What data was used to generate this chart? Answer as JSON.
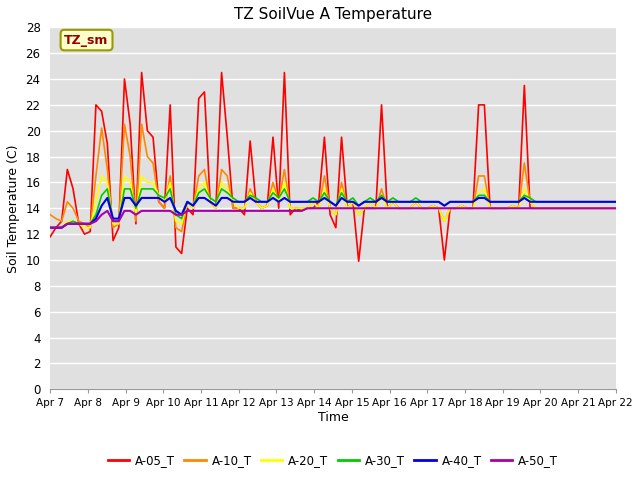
{
  "title": "TZ SoilVue A Temperature",
  "xlabel": "Time",
  "ylabel": "Soil Temperature (C)",
  "ylim": [
    0,
    28
  ],
  "yticks": [
    0,
    2,
    4,
    6,
    8,
    10,
    12,
    14,
    16,
    18,
    20,
    22,
    24,
    26,
    28
  ],
  "bg_color": "#ffffff",
  "plot_bg_color": "#e0e0e0",
  "annotation_text": "TZ_sm",
  "annotation_color": "#990000",
  "annotation_bg": "#ffffcc",
  "annotation_border": "#999900",
  "series_order": [
    "A-05_T",
    "A-10_T",
    "A-20_T",
    "A-30_T",
    "A-40_T",
    "A-50_T"
  ],
  "series": {
    "A-05_T": {
      "color": "#ff0000",
      "linewidth": 1.2
    },
    "A-10_T": {
      "color": "#ff8800",
      "linewidth": 1.2
    },
    "A-20_T": {
      "color": "#ffff00",
      "linewidth": 1.2
    },
    "A-30_T": {
      "color": "#00cc00",
      "linewidth": 1.2
    },
    "A-40_T": {
      "color": "#0000ee",
      "linewidth": 1.5
    },
    "A-50_T": {
      "color": "#aa00aa",
      "linewidth": 1.5
    }
  },
  "A05": [
    11.8,
    12.5,
    13.0,
    17.0,
    15.5,
    12.8,
    12.0,
    12.2,
    22.0,
    21.5,
    19.0,
    11.5,
    12.5,
    24.0,
    20.5,
    12.8,
    24.5,
    20.0,
    19.5,
    14.5,
    14.0,
    22.0,
    11.0,
    10.5,
    14.0,
    13.5,
    22.5,
    23.0,
    14.5,
    14.0,
    24.5,
    19.5,
    14.0,
    14.0,
    13.5,
    19.2,
    14.5,
    14.0,
    14.2,
    19.5,
    14.0,
    24.5,
    13.5,
    14.0,
    13.8,
    14.0,
    14.0,
    14.5,
    19.5,
    13.5,
    12.5,
    19.5,
    14.0,
    14.5,
    9.9,
    14.0,
    14.0,
    14.0,
    22.0,
    14.0,
    14.5,
    14.0,
    14.0,
    14.0,
    14.5,
    14.0,
    14.0,
    14.2,
    14.0,
    10.0,
    14.0,
    14.0,
    14.2,
    14.0,
    14.0,
    22.0,
    22.0,
    14.0,
    14.0,
    14.0,
    14.0,
    14.2,
    14.0,
    23.5,
    14.0,
    14.0,
    14.0,
    14.0,
    14.0,
    14.0,
    14.0,
    14.0,
    14.0,
    14.0,
    14.0,
    14.0,
    14.0,
    14.0,
    14.0,
    14.0
  ],
  "A10": [
    13.5,
    13.2,
    13.0,
    14.5,
    14.0,
    13.0,
    12.8,
    12.5,
    16.5,
    20.2,
    17.0,
    12.5,
    12.8,
    20.5,
    18.0,
    13.0,
    20.5,
    18.0,
    17.5,
    14.5,
    14.0,
    16.5,
    12.5,
    12.2,
    14.5,
    14.0,
    16.5,
    17.0,
    14.5,
    14.0,
    17.0,
    16.5,
    14.0,
    14.0,
    14.0,
    15.5,
    14.5,
    14.0,
    14.2,
    16.0,
    14.5,
    17.0,
    14.0,
    14.0,
    14.0,
    14.0,
    14.5,
    14.0,
    16.5,
    14.0,
    13.5,
    16.0,
    14.0,
    14.5,
    13.5,
    14.0,
    14.5,
    14.0,
    15.5,
    14.0,
    14.5,
    14.0,
    14.0,
    14.0,
    14.5,
    14.0,
    14.0,
    14.2,
    14.0,
    13.0,
    14.0,
    14.0,
    14.2,
    14.0,
    14.0,
    16.5,
    16.5,
    14.0,
    14.0,
    14.0,
    14.0,
    14.2,
    14.0,
    17.5,
    14.5,
    14.0,
    14.0,
    14.0,
    14.0,
    14.0,
    14.0,
    14.0,
    14.0,
    14.0,
    14.0,
    14.0,
    14.0,
    14.0,
    14.0,
    14.0
  ],
  "A20": [
    12.5,
    12.5,
    12.5,
    13.0,
    13.0,
    12.8,
    12.5,
    12.5,
    14.5,
    16.5,
    16.0,
    12.8,
    12.8,
    16.5,
    16.0,
    13.5,
    16.5,
    16.0,
    16.0,
    15.0,
    14.5,
    16.0,
    13.0,
    12.8,
    14.5,
    14.0,
    15.5,
    16.0,
    14.5,
    14.0,
    16.0,
    15.5,
    14.5,
    14.0,
    14.0,
    15.2,
    14.5,
    14.0,
    14.2,
    15.5,
    14.5,
    16.0,
    14.0,
    14.0,
    14.0,
    14.0,
    14.5,
    14.0,
    15.5,
    14.0,
    13.5,
    15.5,
    14.0,
    14.5,
    13.5,
    14.0,
    14.5,
    14.0,
    15.0,
    14.0,
    14.5,
    14.0,
    14.0,
    14.0,
    14.5,
    14.0,
    14.0,
    14.2,
    14.0,
    13.0,
    14.0,
    14.0,
    14.2,
    14.0,
    14.0,
    15.2,
    15.5,
    14.0,
    14.0,
    14.0,
    14.0,
    14.2,
    14.0,
    15.5,
    14.5,
    14.0,
    14.0,
    14.0,
    14.0,
    14.0,
    14.0,
    14.0,
    14.0,
    14.0,
    14.0,
    14.0,
    14.0,
    14.0,
    14.0,
    14.0
  ],
  "A30": [
    12.5,
    12.5,
    12.5,
    12.8,
    13.0,
    12.8,
    12.8,
    12.8,
    13.5,
    15.0,
    15.5,
    13.0,
    13.0,
    15.5,
    15.5,
    14.0,
    15.5,
    15.5,
    15.5,
    15.0,
    14.8,
    15.5,
    13.5,
    13.2,
    14.5,
    14.2,
    15.2,
    15.5,
    14.8,
    14.5,
    15.5,
    15.2,
    14.8,
    14.5,
    14.5,
    15.0,
    14.8,
    14.5,
    14.5,
    15.2,
    14.8,
    15.5,
    14.5,
    14.5,
    14.5,
    14.5,
    14.8,
    14.5,
    15.2,
    14.5,
    14.2,
    15.2,
    14.5,
    14.8,
    14.2,
    14.5,
    14.8,
    14.5,
    15.0,
    14.5,
    14.8,
    14.5,
    14.5,
    14.5,
    14.8,
    14.5,
    14.5,
    14.5,
    14.5,
    14.2,
    14.5,
    14.5,
    14.5,
    14.5,
    14.5,
    15.0,
    15.0,
    14.5,
    14.5,
    14.5,
    14.5,
    14.5,
    14.5,
    15.0,
    14.8,
    14.5,
    14.5,
    14.5,
    14.5,
    14.5,
    14.5,
    14.5,
    14.5,
    14.5,
    14.5,
    14.5,
    14.5,
    14.5,
    14.5,
    14.5
  ],
  "A40": [
    12.5,
    12.5,
    12.5,
    12.8,
    12.8,
    12.8,
    12.8,
    12.8,
    13.2,
    14.2,
    14.8,
    13.2,
    13.2,
    14.8,
    14.8,
    14.2,
    14.8,
    14.8,
    14.8,
    14.8,
    14.5,
    14.8,
    13.8,
    13.5,
    14.5,
    14.2,
    14.8,
    14.8,
    14.5,
    14.2,
    14.8,
    14.8,
    14.5,
    14.5,
    14.5,
    14.8,
    14.5,
    14.5,
    14.5,
    14.8,
    14.5,
    14.8,
    14.5,
    14.5,
    14.5,
    14.5,
    14.5,
    14.5,
    14.8,
    14.5,
    14.2,
    14.8,
    14.5,
    14.5,
    14.2,
    14.5,
    14.5,
    14.5,
    14.8,
    14.5,
    14.5,
    14.5,
    14.5,
    14.5,
    14.5,
    14.5,
    14.5,
    14.5,
    14.5,
    14.2,
    14.5,
    14.5,
    14.5,
    14.5,
    14.5,
    14.8,
    14.8,
    14.5,
    14.5,
    14.5,
    14.5,
    14.5,
    14.5,
    14.8,
    14.5,
    14.5,
    14.5,
    14.5,
    14.5,
    14.5,
    14.5,
    14.5,
    14.5,
    14.5,
    14.5,
    14.5,
    14.5,
    14.5,
    14.5,
    14.5
  ],
  "A50": [
    12.5,
    12.5,
    12.5,
    12.8,
    12.8,
    12.8,
    12.8,
    12.8,
    13.0,
    13.5,
    13.8,
    13.0,
    13.0,
    13.8,
    13.8,
    13.5,
    13.8,
    13.8,
    13.8,
    13.8,
    13.8,
    13.8,
    13.5,
    13.5,
    13.8,
    13.8,
    13.8,
    13.8,
    13.8,
    13.8,
    13.8,
    13.8,
    13.8,
    13.8,
    13.8,
    13.8,
    13.8,
    13.8,
    13.8,
    13.8,
    13.8,
    13.8,
    13.8,
    13.8,
    13.8,
    14.0,
    14.0,
    14.0,
    14.0,
    14.0,
    14.0,
    14.0,
    14.0,
    14.0,
    14.0,
    14.0,
    14.0,
    14.0,
    14.0,
    14.0,
    14.0,
    14.0,
    14.0,
    14.0,
    14.0,
    14.0,
    14.0,
    14.0,
    14.0,
    14.0,
    14.0,
    14.0,
    14.0,
    14.0,
    14.0,
    14.0,
    14.0,
    14.0,
    14.0,
    14.0,
    14.0,
    14.0,
    14.0,
    14.0,
    14.0,
    14.0,
    14.0,
    14.0,
    14.0,
    14.0,
    14.0,
    14.0,
    14.0,
    14.0,
    14.0,
    14.0,
    14.0,
    14.0,
    14.0,
    14.0
  ],
  "xtick_labels": [
    "Apr 7",
    "Apr 8",
    "Apr 9",
    "Apr 10",
    "Apr 11",
    "Apr 12",
    "Apr 13",
    "Apr 14",
    "Apr 15",
    "Apr 16",
    "Apr 17",
    "Apr 18",
    "Apr 19",
    "Apr 20",
    "Apr 21",
    "Apr 22"
  ],
  "n_points": 100,
  "legend_colors": [
    "#ff0000",
    "#ff8800",
    "#ffff00",
    "#00cc00",
    "#0000ee",
    "#aa00aa"
  ],
  "legend_labels": [
    "A-05_T",
    "A-10_T",
    "A-20_T",
    "A-30_T",
    "A-40_T",
    "A-50_T"
  ]
}
